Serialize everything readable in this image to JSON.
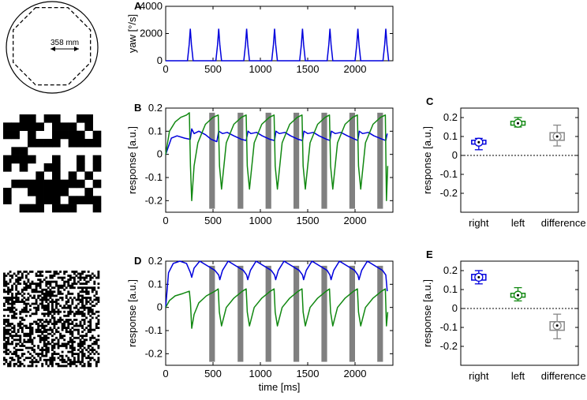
{
  "colors": {
    "right": "#0000dd",
    "left": "#118811",
    "difference": "#888888",
    "stim": "#808080"
  },
  "arena": {
    "label": "358 mm"
  },
  "chart_data": [
    {
      "id": "A",
      "type": "line",
      "panel_label": "A",
      "ylabel": "yaw [°/s]",
      "xlabel": "",
      "xlim": [
        0,
        2400
      ],
      "ylim": [
        0,
        4000
      ],
      "xticks": [
        "0",
        "500",
        "1000",
        "1500",
        "2000"
      ],
      "yticks": [
        "0",
        "2000",
        "4000"
      ],
      "peaks_x": [
        260,
        560,
        855,
        1150,
        1445,
        1735,
        2030,
        2325
      ],
      "peak_value": 2350
    },
    {
      "id": "B",
      "type": "line",
      "panel_label": "B",
      "ylabel": "response [a.u.]",
      "xlabel": "",
      "xlim": [
        0,
        2400
      ],
      "ylim": [
        -0.25,
        0.2
      ],
      "xticks": [
        "0",
        "500",
        "1000",
        "1500",
        "2000"
      ],
      "yticks": [
        "-0.2",
        "-0.1",
        "0",
        "0.1",
        "0.2"
      ],
      "stim_bars": [
        [
          460,
          520
        ],
        [
          760,
          820
        ],
        [
          1055,
          1115
        ],
        [
          1350,
          1410
        ],
        [
          1645,
          1705
        ],
        [
          1940,
          2000
        ],
        [
          2235,
          2295
        ]
      ],
      "series": [
        {
          "name": "right",
          "color": "#0000dd",
          "x": [
            0,
            60,
            120,
            200,
            260,
            275,
            300,
            350,
            420,
            480,
            540,
            560,
            600,
            650,
            720,
            800,
            850,
            870,
            900,
            960,
            1020,
            1100,
            1150,
            1165,
            1200,
            1260,
            1320,
            1400,
            1445,
            1460,
            1500,
            1560,
            1620,
            1700,
            1735,
            1750,
            1790,
            1850,
            1920,
            2000,
            2030,
            2045,
            2080,
            2140,
            2200,
            2290,
            2325,
            2340
          ],
          "y": [
            0.0,
            0.07,
            0.08,
            0.07,
            0.065,
            0.11,
            0.09,
            0.1,
            0.085,
            0.065,
            0.055,
            0.1,
            0.09,
            0.095,
            0.08,
            0.065,
            0.06,
            0.1,
            0.09,
            0.095,
            0.08,
            0.065,
            0.06,
            0.1,
            0.09,
            0.095,
            0.08,
            0.065,
            0.06,
            0.1,
            0.09,
            0.095,
            0.08,
            0.065,
            0.06,
            0.1,
            0.09,
            0.095,
            0.08,
            0.065,
            0.06,
            0.1,
            0.09,
            0.095,
            0.08,
            0.065,
            0.06,
            0.09
          ]
        },
        {
          "name": "left",
          "color": "#118811",
          "x": [
            0,
            40,
            100,
            160,
            220,
            250,
            262,
            275,
            300,
            340,
            420,
            500,
            555,
            568,
            590,
            640,
            720,
            800,
            850,
            862,
            885,
            935,
            1015,
            1095,
            1145,
            1157,
            1180,
            1230,
            1310,
            1390,
            1440,
            1452,
            1475,
            1525,
            1605,
            1685,
            1730,
            1742,
            1765,
            1815,
            1895,
            1975,
            2025,
            2037,
            2060,
            2110,
            2190,
            2270,
            2320,
            2332,
            2345
          ],
          "y": [
            0.0,
            0.1,
            0.14,
            0.16,
            0.17,
            0.18,
            -0.05,
            -0.2,
            -0.05,
            0.05,
            0.13,
            0.16,
            0.17,
            -0.05,
            -0.15,
            0.05,
            0.13,
            0.16,
            0.17,
            -0.05,
            -0.15,
            0.05,
            0.13,
            0.16,
            0.17,
            -0.05,
            -0.15,
            0.05,
            0.13,
            0.16,
            0.17,
            -0.05,
            -0.15,
            0.05,
            0.13,
            0.16,
            0.17,
            -0.05,
            -0.15,
            0.05,
            0.13,
            0.16,
            0.17,
            -0.05,
            -0.15,
            0.05,
            0.13,
            0.16,
            0.17,
            -0.2,
            -0.05
          ]
        }
      ]
    },
    {
      "id": "C",
      "type": "box",
      "panel_label": "C",
      "ylabel": "response [a.u.]",
      "ylim": [
        -0.3,
        0.25
      ],
      "yticks": [
        "-0.2",
        "-0.1",
        "0",
        "0.1",
        "0.2"
      ],
      "categories": [
        "right",
        "left",
        "difference"
      ],
      "boxes": [
        {
          "name": "right",
          "median": 0.07,
          "q1": 0.06,
          "q3": 0.08,
          "min": 0.03,
          "max": 0.09
        },
        {
          "name": "left",
          "median": 0.17,
          "q1": 0.16,
          "q3": 0.18,
          "min": 0.15,
          "max": 0.2
        },
        {
          "name": "difference",
          "median": 0.1,
          "q1": 0.08,
          "q3": 0.12,
          "min": 0.05,
          "max": 0.16
        }
      ]
    },
    {
      "id": "D",
      "type": "line",
      "panel_label": "D",
      "ylabel": "response [a.u.]",
      "xlabel": "time [ms]",
      "xlim": [
        0,
        2400
      ],
      "ylim": [
        -0.25,
        0.2
      ],
      "xticks": [
        "0",
        "500",
        "1000",
        "1500",
        "2000"
      ],
      "yticks": [
        "-0.2",
        "-0.1",
        "0",
        "0.1",
        "0.2"
      ],
      "stim_bars": [
        [
          460,
          520
        ],
        [
          760,
          820
        ],
        [
          1055,
          1115
        ],
        [
          1350,
          1410
        ],
        [
          1645,
          1705
        ],
        [
          1940,
          2000
        ],
        [
          2235,
          2295
        ]
      ],
      "series": [
        {
          "name": "right",
          "color": "#0000dd",
          "x": [
            0,
            30,
            80,
            150,
            220,
            262,
            275,
            300,
            360,
            440,
            520,
            560,
            572,
            600,
            660,
            740,
            820,
            855,
            867,
            895,
            955,
            1035,
            1115,
            1150,
            1162,
            1190,
            1250,
            1330,
            1410,
            1445,
            1457,
            1485,
            1545,
            1625,
            1705,
            1735,
            1747,
            1775,
            1835,
            1915,
            1995,
            2030,
            2042,
            2070,
            2130,
            2210,
            2290,
            2325,
            2340
          ],
          "y": [
            0.0,
            0.15,
            0.19,
            0.2,
            0.19,
            0.15,
            0.13,
            0.17,
            0.2,
            0.18,
            0.16,
            0.14,
            0.12,
            0.16,
            0.2,
            0.18,
            0.16,
            0.14,
            0.12,
            0.16,
            0.2,
            0.18,
            0.16,
            0.14,
            0.12,
            0.16,
            0.2,
            0.18,
            0.16,
            0.14,
            0.12,
            0.16,
            0.2,
            0.18,
            0.16,
            0.14,
            0.12,
            0.16,
            0.2,
            0.18,
            0.16,
            0.14,
            0.12,
            0.16,
            0.2,
            0.18,
            0.16,
            0.14,
            0.07
          ]
        },
        {
          "name": "left",
          "color": "#118811",
          "x": [
            0,
            40,
            100,
            180,
            250,
            262,
            275,
            300,
            350,
            430,
            520,
            555,
            567,
            590,
            640,
            720,
            810,
            850,
            862,
            885,
            935,
            1015,
            1105,
            1145,
            1157,
            1180,
            1230,
            1310,
            1400,
            1440,
            1452,
            1475,
            1525,
            1605,
            1695,
            1730,
            1742,
            1765,
            1815,
            1895,
            1985,
            2025,
            2037,
            2060,
            2110,
            2190,
            2280,
            2320,
            2332,
            2345
          ],
          "y": [
            0.0,
            0.03,
            0.05,
            0.06,
            0.07,
            0.02,
            -0.09,
            -0.03,
            0.02,
            0.05,
            0.07,
            0.08,
            -0.02,
            -0.08,
            0.0,
            0.04,
            0.07,
            0.08,
            -0.02,
            -0.08,
            0.0,
            0.04,
            0.07,
            0.08,
            -0.02,
            -0.08,
            0.0,
            0.04,
            0.07,
            0.08,
            -0.02,
            -0.08,
            0.0,
            0.04,
            0.07,
            0.08,
            -0.02,
            -0.08,
            0.0,
            0.04,
            0.07,
            0.08,
            -0.02,
            -0.08,
            0.0,
            0.04,
            0.07,
            0.08,
            -0.08,
            -0.02
          ]
        }
      ]
    },
    {
      "id": "E",
      "type": "box",
      "panel_label": "E",
      "ylabel": "response [a.u.]",
      "ylim": [
        -0.3,
        0.25
      ],
      "yticks": [
        "-0.2",
        "-0.1",
        "0",
        "0.1",
        "0.2"
      ],
      "categories": [
        "right",
        "left",
        "difference"
      ],
      "boxes": [
        {
          "name": "right",
          "median": 0.165,
          "q1": 0.15,
          "q3": 0.18,
          "min": 0.13,
          "max": 0.2
        },
        {
          "name": "left",
          "median": 0.07,
          "q1": 0.06,
          "q3": 0.08,
          "min": 0.04,
          "max": 0.11
        },
        {
          "name": "difference",
          "median": -0.09,
          "q1": -0.115,
          "q3": -0.07,
          "min": -0.16,
          "max": -0.03
        }
      ]
    }
  ]
}
